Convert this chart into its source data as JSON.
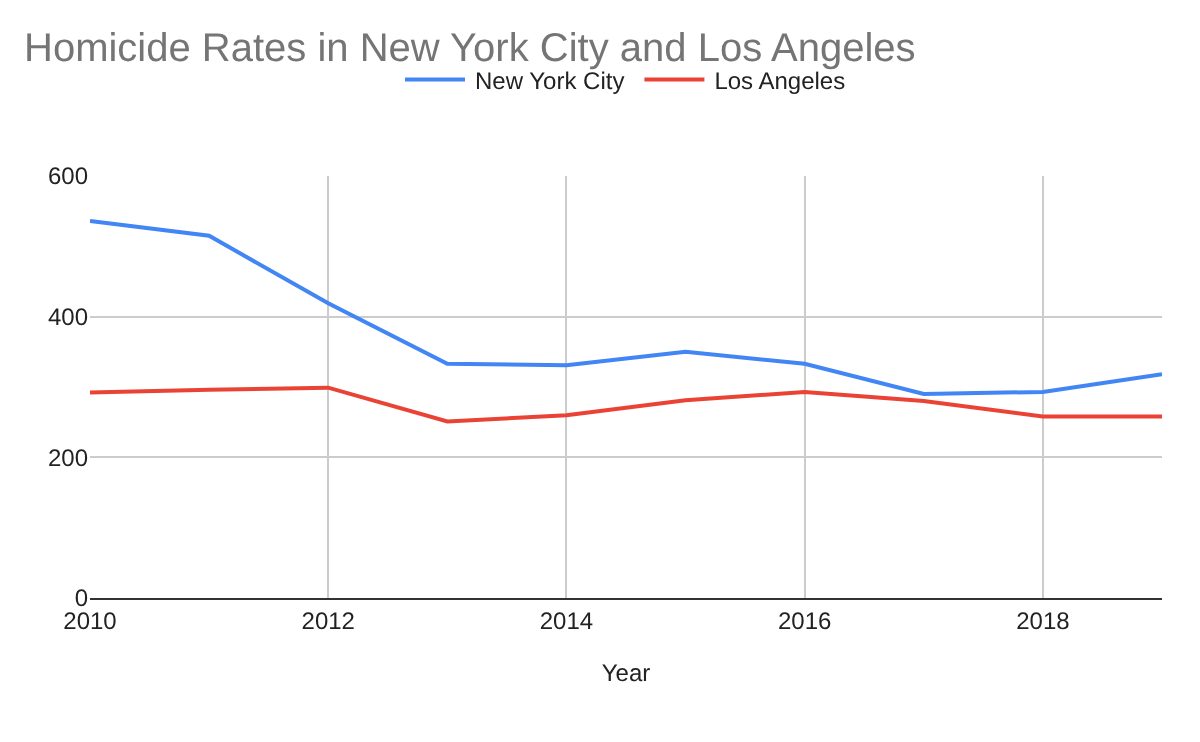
{
  "chart_data": {
    "type": "line",
    "title": "Homicide Rates in New York City and Los Angeles",
    "xlabel": "Year",
    "x": [
      2010,
      2011,
      2012,
      2013,
      2014,
      2015,
      2016,
      2017,
      2018,
      2019
    ],
    "series": [
      {
        "name": "New York City",
        "color": "#4285f4",
        "values": [
          536,
          515,
          419,
          333,
          331,
          350,
          333,
          290,
          293,
          318
        ]
      },
      {
        "name": "Los Angeles",
        "color": "#ea4335",
        "values": [
          292,
          296,
          299,
          251,
          260,
          281,
          293,
          280,
          258,
          258
        ]
      }
    ],
    "xlim": [
      2010,
      2019
    ],
    "xticks": [
      2010,
      2012,
      2014,
      2016,
      2018
    ],
    "ylim": [
      0,
      600
    ],
    "yticks": [
      0,
      200,
      400,
      600
    ],
    "grid": true,
    "legend": "top",
    "marker": "none",
    "line_style": "solid"
  }
}
